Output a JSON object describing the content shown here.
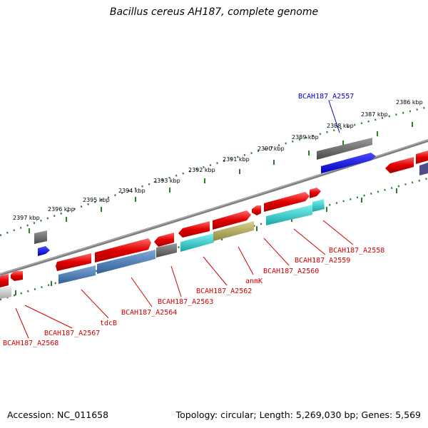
{
  "title": "Bacillus cereus AH187, complete genome",
  "footer": {
    "accession": "Accession: NC_011658",
    "stats": "Topology: circular; Length: 5,269,030 bp; Genes: 5,569"
  },
  "colors": {
    "backbone": "#808080",
    "tick_dots": "#2a7d2a",
    "cds_red": "#e00000",
    "cds_gray": "#666666",
    "cds_blue": "#0000ee",
    "rna_cyan": "#22c8c8",
    "steelblue": "#4a7fb5",
    "olive": "#b5ad5e",
    "label_red": "#d00000",
    "label_blue": "#0000cc"
  },
  "scale_labels": [
    "2386 kbp",
    "2387 kbp",
    "2388 kbp",
    "2389 kbp",
    "2390 kbp",
    "2391 kbp",
    "2392 kbp",
    "2393 kbp",
    "2394 kbp",
    "2395 kbp",
    "2396 kbp",
    "2397 kbp"
  ],
  "gene_labels": [
    {
      "text": "BCAH187_A2557",
      "color": "blue"
    },
    {
      "text": "BCAH187_A2558",
      "color": "red"
    },
    {
      "text": "BCAH187_A2559",
      "color": "red"
    },
    {
      "text": "BCAH187_A2560",
      "color": "red"
    },
    {
      "text": "anmK",
      "color": "red"
    },
    {
      "text": "BCAH187_A2562",
      "color": "red"
    },
    {
      "text": "BCAH187_A2563",
      "color": "red"
    },
    {
      "text": "BCAH187_A2564",
      "color": "red"
    },
    {
      "text": "tdcB",
      "color": "red"
    },
    {
      "text": "BCAH187_A2567",
      "color": "red"
    },
    {
      "text": "BCAH187_A2568",
      "color": "red"
    }
  ]
}
